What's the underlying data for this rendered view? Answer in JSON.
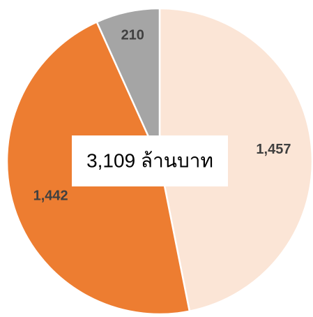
{
  "chart_data": {
    "type": "pie",
    "annotation": "3,109 ล้านบาท",
    "categories": [
      null,
      null,
      null
    ],
    "values": [
      1457,
      1442,
      210
    ],
    "value_labels": [
      "1,457",
      "1,442",
      "210"
    ],
    "colors": [
      "#fbe5d6",
      "#ed7d31",
      "#a5a5a5"
    ]
  }
}
